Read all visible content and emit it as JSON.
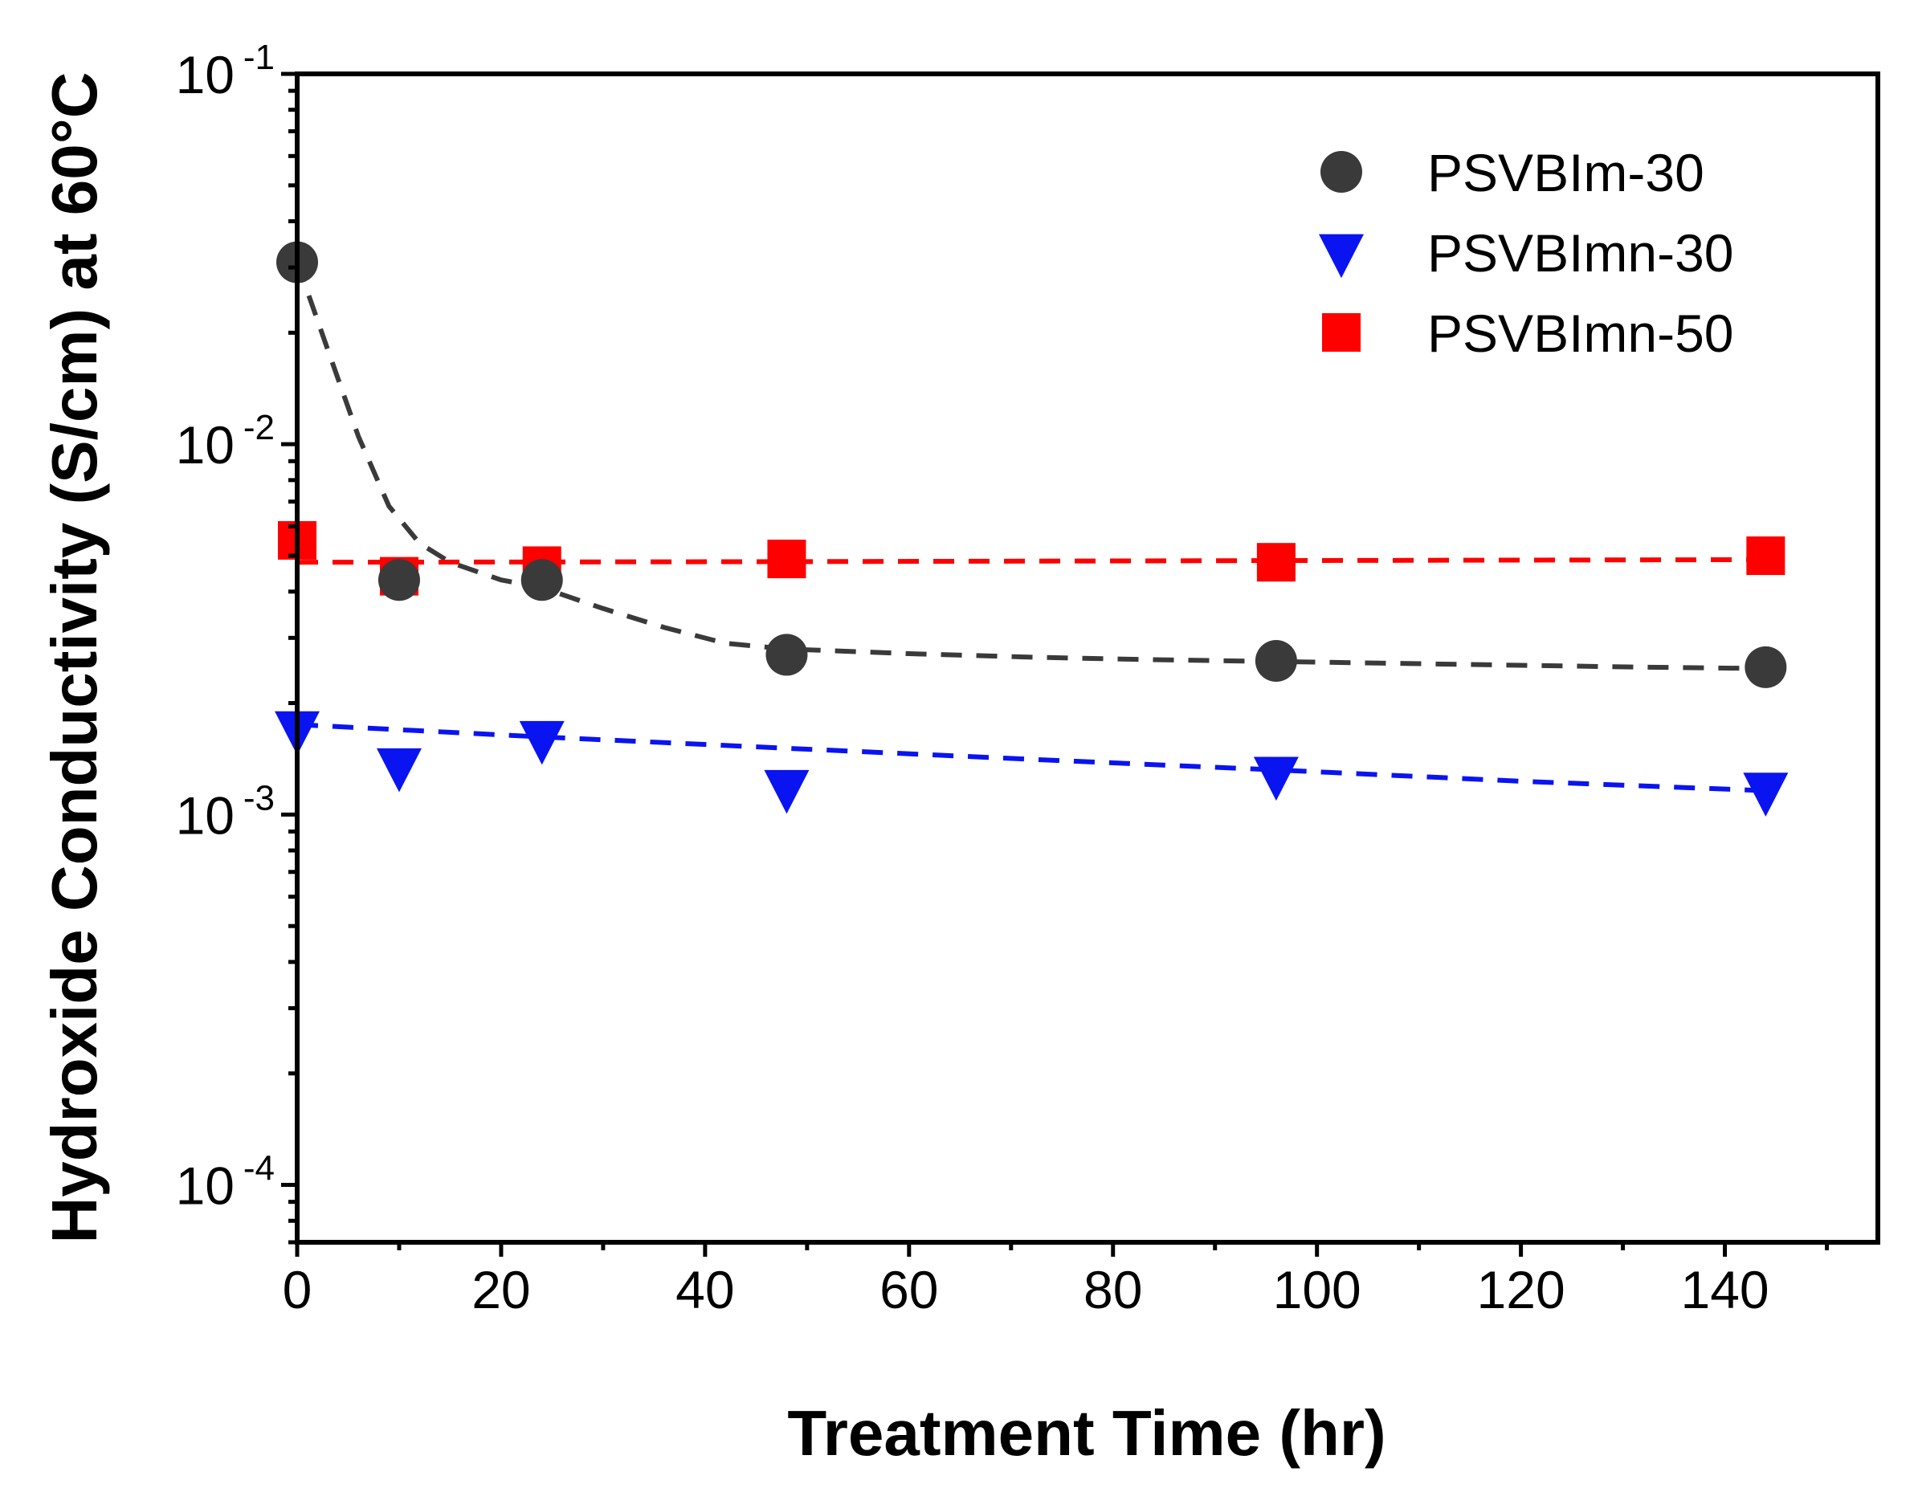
{
  "chart_data": {
    "type": "scatter",
    "title": "",
    "xlabel": "Treatment Time (hr)",
    "ylabel": "Hydroxide Conductivity (S/cm) at 60°C",
    "xlim": [
      0,
      155
    ],
    "ylim": [
      7e-05,
      0.1
    ],
    "yscale": "log",
    "grid": false,
    "legend_position": "top-right",
    "x_ticks": [
      0,
      20,
      40,
      60,
      80,
      100,
      120,
      140
    ],
    "y_ticks": [
      {
        "value": 0.0001,
        "base": "10",
        "exp": "-4"
      },
      {
        "value": 0.001,
        "base": "10",
        "exp": "-3"
      },
      {
        "value": 0.01,
        "base": "10",
        "exp": "-2"
      },
      {
        "value": 0.1,
        "base": "10",
        "exp": "-1"
      }
    ],
    "series": [
      {
        "name": "PSVBIm-30",
        "marker": "circle",
        "color": "#3a3a3a",
        "points": [
          [
            0,
            0.031
          ],
          [
            10,
            0.0043
          ],
          [
            24,
            0.0043
          ],
          [
            48,
            0.0027
          ],
          [
            96,
            0.0026
          ],
          [
            144,
            0.0025
          ]
        ],
        "fit": [
          [
            0,
            0.031
          ],
          [
            3,
            0.018
          ],
          [
            6,
            0.0105
          ],
          [
            9,
            0.0068
          ],
          [
            12,
            0.0054
          ],
          [
            15,
            0.0048
          ],
          [
            20,
            0.0043
          ],
          [
            24,
            0.0041
          ],
          [
            30,
            0.0036
          ],
          [
            36,
            0.0032
          ],
          [
            42,
            0.0029
          ],
          [
            48,
            0.0028
          ],
          [
            60,
            0.00272
          ],
          [
            72,
            0.00266
          ],
          [
            84,
            0.00262
          ],
          [
            96,
            0.00259
          ],
          [
            108,
            0.00256
          ],
          [
            120,
            0.00253
          ],
          [
            132,
            0.0025
          ],
          [
            144,
            0.00248
          ]
        ]
      },
      {
        "name": "PSVBImn-30",
        "marker": "triangle-down",
        "color": "#0a14f0",
        "points": [
          [
            0,
            0.0017
          ],
          [
            10,
            0.00135
          ],
          [
            24,
            0.0016
          ],
          [
            48,
            0.00118
          ],
          [
            96,
            0.00128
          ],
          [
            144,
            0.00116
          ]
        ],
        "fit": [
          [
            0,
            0.00175
          ],
          [
            24,
            0.00162
          ],
          [
            48,
            0.00151
          ],
          [
            72,
            0.00141
          ],
          [
            96,
            0.00132
          ],
          [
            120,
            0.00123
          ],
          [
            144,
            0.00116
          ]
        ]
      },
      {
        "name": "PSVBImn-50",
        "marker": "square",
        "color": "#ff0000",
        "points": [
          [
            0,
            0.0055
          ],
          [
            10,
            0.0044
          ],
          [
            24,
            0.0047
          ],
          [
            48,
            0.0049
          ],
          [
            96,
            0.0048
          ],
          [
            144,
            0.005
          ]
        ],
        "fit": [
          [
            0,
            0.0048
          ],
          [
            48,
            0.00482
          ],
          [
            96,
            0.00485
          ],
          [
            144,
            0.00488
          ]
        ]
      }
    ]
  }
}
